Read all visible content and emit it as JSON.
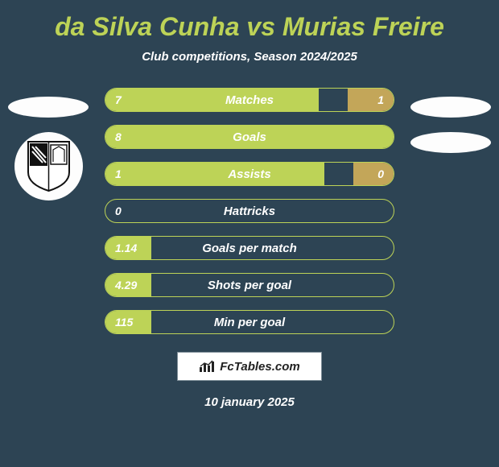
{
  "title": "da Silva Cunha vs Murias Freire",
  "subtitle": "Club competitions, Season 2024/2025",
  "date": "10 january 2025",
  "watermark_text": "FcTables.com",
  "colors": {
    "background": "#2d4454",
    "title": "#bdd357",
    "subtitle": "#ffffff",
    "text": "#ffffff",
    "bar_left": "#bdd357",
    "bar_right": "#c3a659",
    "row_border": "#bdd357",
    "ellipse": "#fdfdfd",
    "watermark_bg": "#ffffff",
    "watermark_text": "#222222",
    "watermark_border": "#7f8f99"
  },
  "stats": [
    {
      "label": "Matches",
      "left_val": "7",
      "right_val": "1",
      "left_pct": 74,
      "right_pct": 16
    },
    {
      "label": "Goals",
      "left_val": "8",
      "right_val": "",
      "left_pct": 100,
      "right_pct": 0
    },
    {
      "label": "Assists",
      "left_val": "1",
      "right_val": "0",
      "left_pct": 76,
      "right_pct": 14
    },
    {
      "label": "Hattricks",
      "left_val": "0",
      "right_val": "",
      "left_pct": 0,
      "right_pct": 0
    },
    {
      "label": "Goals per match",
      "left_val": "1.14",
      "right_val": "",
      "left_pct": 16,
      "right_pct": 0
    },
    {
      "label": "Shots per goal",
      "left_val": "4.29",
      "right_val": "",
      "left_pct": 16,
      "right_pct": 0
    },
    {
      "label": "Min per goal",
      "left_val": "115",
      "right_val": "",
      "left_pct": 16,
      "right_pct": 0
    }
  ]
}
